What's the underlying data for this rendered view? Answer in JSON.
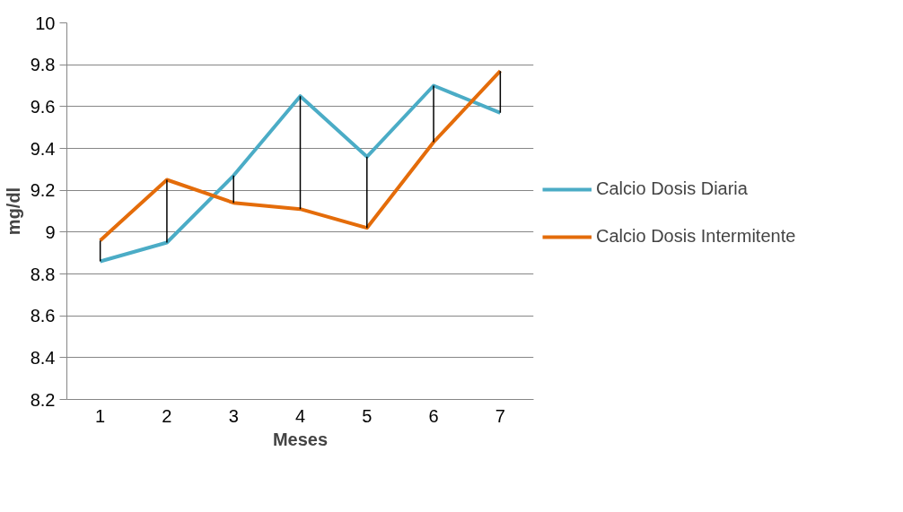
{
  "chart_data": {
    "type": "line",
    "xlabel": "Meses",
    "ylabel": "mg/dl",
    "x": [
      1,
      2,
      3,
      4,
      5,
      6,
      7
    ],
    "series": [
      {
        "name": "Calcio Dosis Diaria",
        "color": "#4bacc6",
        "values": [
          8.86,
          8.95,
          9.27,
          9.65,
          9.36,
          9.7,
          9.57
        ],
        "errors": [
          [
            8.86,
            8.96
          ],
          [
            8.95,
            9.25
          ],
          [
            9.14,
            9.27
          ],
          [
            9.11,
            9.65
          ],
          [
            9.02,
            9.36
          ],
          [
            9.43,
            9.7
          ],
          [
            9.57,
            9.77
          ]
        ]
      },
      {
        "name": "Calcio Dosis Intermitente",
        "color": "#e46c0a",
        "values": [
          8.96,
          9.25,
          9.14,
          9.11,
          9.02,
          9.43,
          9.77
        ]
      }
    ],
    "xlim": [
      0.5,
      7.5
    ],
    "xticks": [
      1,
      2,
      3,
      4,
      5,
      6,
      7
    ],
    "ylim": [
      8.2,
      10
    ],
    "yticks": [
      8.2,
      8.4,
      8.6,
      8.8,
      9,
      9.2,
      9.4,
      9.6,
      9.8,
      10
    ],
    "grid": "y",
    "legend": "right",
    "marker": "none",
    "line_style": "solid"
  }
}
